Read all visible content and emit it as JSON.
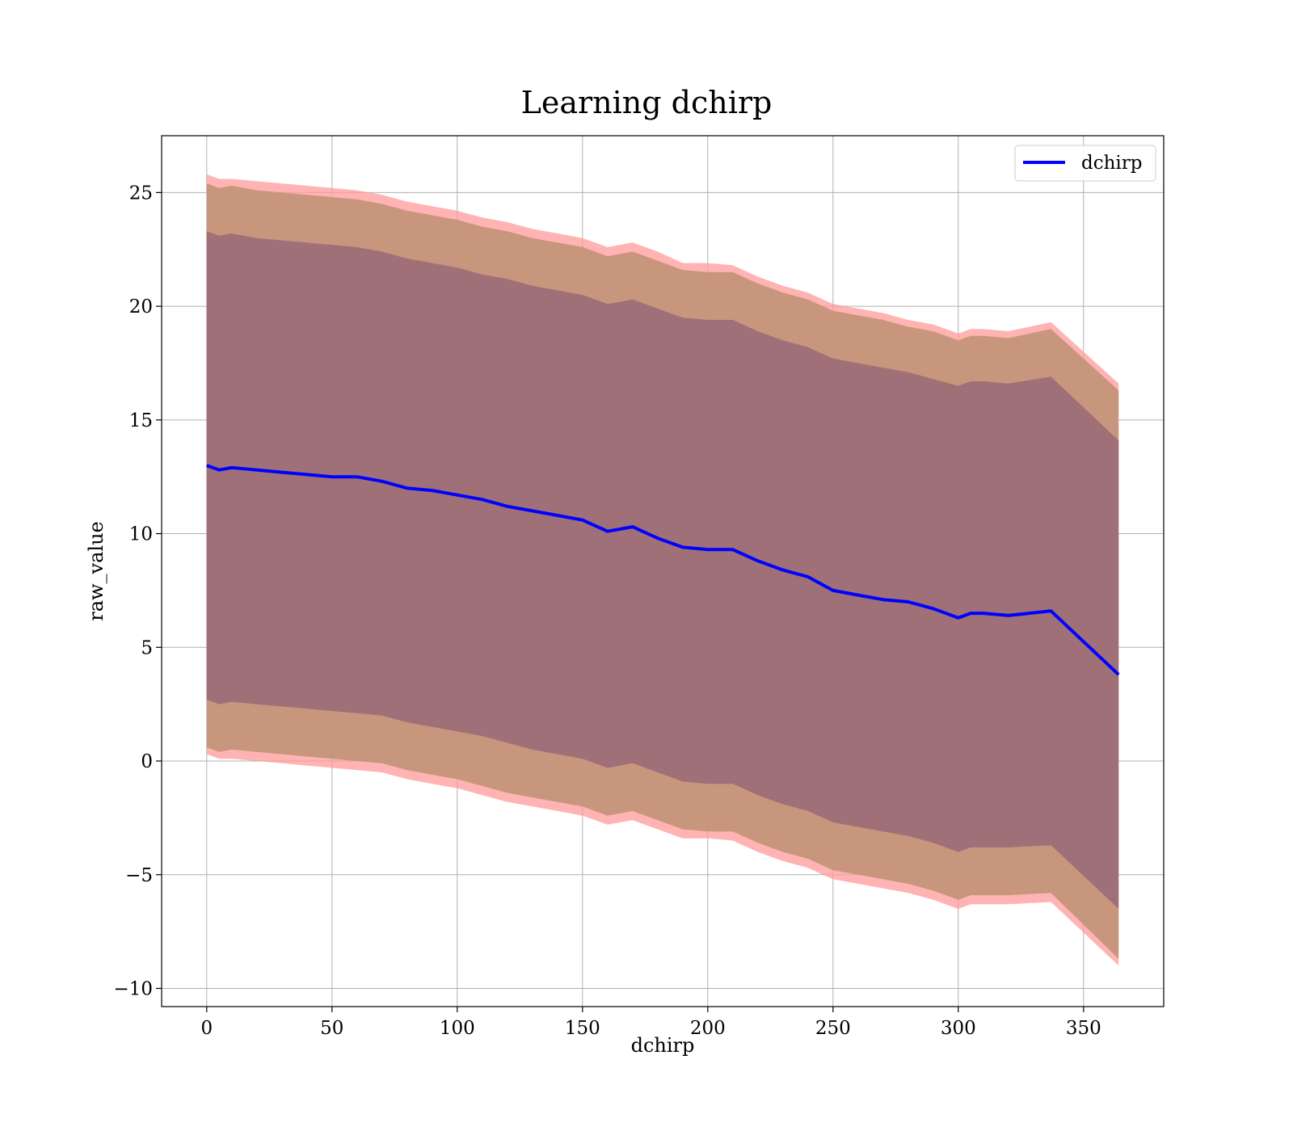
{
  "chart_data": {
    "type": "line",
    "title": "Learning dchirp",
    "xlabel": "dchirp",
    "ylabel": "raw_value",
    "xlim": [
      -18,
      382
    ],
    "ylim": [
      -10.8,
      27.5
    ],
    "xticks": [
      0,
      50,
      100,
      150,
      200,
      250,
      300,
      350
    ],
    "yticks": [
      -10,
      -5,
      0,
      5,
      10,
      15,
      20,
      25
    ],
    "grid": true,
    "legend": {
      "position": "upper-right",
      "entries": [
        "dchirp"
      ]
    },
    "colors": {
      "line": "#0000ff",
      "outer_band": "#ff9999",
      "mid_band": "#c49579",
      "inner_band": "#a07078",
      "grid": "#b0b0b0"
    },
    "series": [
      {
        "name": "dchirp",
        "x": [
          0,
          5,
          10,
          20,
          30,
          40,
          50,
          60,
          70,
          80,
          90,
          100,
          110,
          120,
          130,
          140,
          150,
          160,
          170,
          180,
          190,
          200,
          210,
          220,
          230,
          240,
          250,
          260,
          270,
          280,
          290,
          300,
          305,
          310,
          320,
          337,
          364
        ],
        "y": [
          13.0,
          12.8,
          12.9,
          12.8,
          12.7,
          12.6,
          12.5,
          12.5,
          12.3,
          12.0,
          11.9,
          11.7,
          11.5,
          11.2,
          11.0,
          10.8,
          10.6,
          10.1,
          10.3,
          9.8,
          9.4,
          9.3,
          9.3,
          8.8,
          8.4,
          8.1,
          7.5,
          7.3,
          7.1,
          7.0,
          6.7,
          6.3,
          6.5,
          6.5,
          6.4,
          6.6,
          3.8
        ]
      }
    ],
    "bands": [
      {
        "role": "outer",
        "upper": [
          25.8,
          25.6,
          25.6,
          25.5,
          25.4,
          25.3,
          25.2,
          25.1,
          24.9,
          24.6,
          24.4,
          24.2,
          23.9,
          23.7,
          23.4,
          23.2,
          23.0,
          22.6,
          22.8,
          22.4,
          21.9,
          21.9,
          21.8,
          21.3,
          20.9,
          20.6,
          20.1,
          19.9,
          19.7,
          19.4,
          19.2,
          18.8,
          19.0,
          19.0,
          18.9,
          19.3,
          16.6
        ],
        "lower": [
          0.3,
          0.1,
          0.1,
          0.0,
          -0.1,
          -0.2,
          -0.3,
          -0.4,
          -0.5,
          -0.8,
          -1.0,
          -1.2,
          -1.5,
          -1.8,
          -2.0,
          -2.2,
          -2.4,
          -2.8,
          -2.6,
          -3.0,
          -3.4,
          -3.4,
          -3.5,
          -4.0,
          -4.4,
          -4.7,
          -5.2,
          -5.4,
          -5.6,
          -5.8,
          -6.1,
          -6.5,
          -6.3,
          -6.3,
          -6.3,
          -6.2,
          -9.0
        ]
      },
      {
        "role": "middle",
        "upper": [
          25.4,
          25.2,
          25.3,
          25.1,
          25.0,
          24.9,
          24.8,
          24.7,
          24.5,
          24.2,
          24.0,
          23.8,
          23.5,
          23.3,
          23.0,
          22.8,
          22.6,
          22.2,
          22.4,
          22.0,
          21.6,
          21.5,
          21.5,
          21.0,
          20.6,
          20.3,
          19.8,
          19.6,
          19.4,
          19.1,
          18.9,
          18.5,
          18.7,
          18.7,
          18.6,
          19.0,
          16.3
        ],
        "lower": [
          0.6,
          0.4,
          0.5,
          0.4,
          0.3,
          0.2,
          0.1,
          0.0,
          -0.1,
          -0.4,
          -0.6,
          -0.8,
          -1.1,
          -1.4,
          -1.6,
          -1.8,
          -2.0,
          -2.4,
          -2.2,
          -2.6,
          -3.0,
          -3.1,
          -3.1,
          -3.6,
          -4.0,
          -4.3,
          -4.8,
          -5.0,
          -5.2,
          -5.4,
          -5.7,
          -6.1,
          -5.9,
          -5.9,
          -5.9,
          -5.8,
          -8.7
        ]
      },
      {
        "role": "inner",
        "upper": [
          23.3,
          23.1,
          23.2,
          23.0,
          22.9,
          22.8,
          22.7,
          22.6,
          22.4,
          22.1,
          21.9,
          21.7,
          21.4,
          21.2,
          20.9,
          20.7,
          20.5,
          20.1,
          20.3,
          19.9,
          19.5,
          19.4,
          19.4,
          18.9,
          18.5,
          18.2,
          17.7,
          17.5,
          17.3,
          17.1,
          16.8,
          16.5,
          16.7,
          16.7,
          16.6,
          16.9,
          14.1
        ],
        "lower": [
          2.7,
          2.5,
          2.6,
          2.5,
          2.4,
          2.3,
          2.2,
          2.1,
          2.0,
          1.7,
          1.5,
          1.3,
          1.1,
          0.8,
          0.5,
          0.3,
          0.1,
          -0.3,
          -0.1,
          -0.5,
          -0.9,
          -1.0,
          -1.0,
          -1.5,
          -1.9,
          -2.2,
          -2.7,
          -2.9,
          -3.1,
          -3.3,
          -3.6,
          -4.0,
          -3.8,
          -3.8,
          -3.8,
          -3.7,
          -6.5
        ]
      }
    ]
  }
}
